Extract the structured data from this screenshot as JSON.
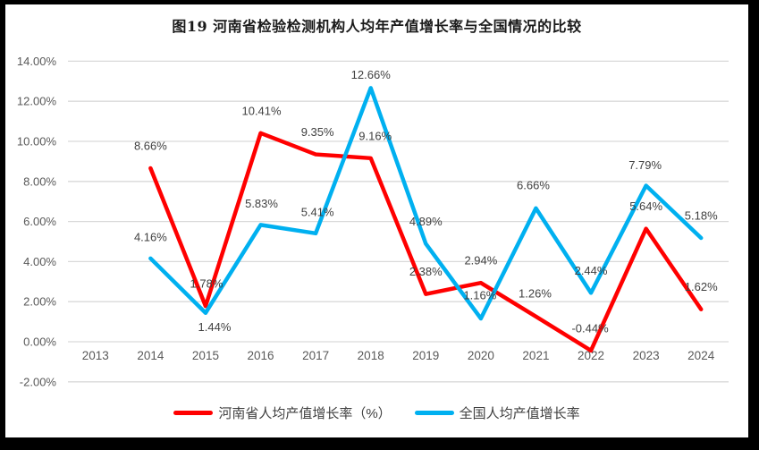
{
  "window": {
    "frame_color": "#000000",
    "canvas_background": "#FFFFFF"
  },
  "chart_data": {
    "type": "line",
    "title": "图19  河南省检验检测机构人均年产值增长率与全国情况的比较",
    "categories": [
      "2013",
      "2014",
      "2015",
      "2016",
      "2017",
      "2018",
      "2019",
      "2020",
      "2021",
      "2022",
      "2023",
      "2024"
    ],
    "series": [
      {
        "name": "河南省人均产值增长率（%）",
        "color": "#FF0000",
        "values": [
          null,
          8.66,
          1.78,
          10.41,
          9.35,
          9.16,
          2.38,
          2.94,
          1.26,
          -0.44,
          5.64,
          1.62
        ],
        "data_labels": [
          null,
          "8.66%",
          "1.78%",
          "10.41%",
          "9.35%",
          "9.16%",
          "2.38%",
          "2.94%",
          "1.26%",
          "-0.44%",
          "5.64%",
          "1.62%"
        ],
        "label_offsets": [
          null,
          [
            0,
            -25
          ],
          [
            1,
            -25
          ],
          [
            1,
            -25
          ],
          [
            2,
            -25
          ],
          [
            5,
            -25
          ],
          [
            0,
            -25
          ],
          [
            0,
            -25
          ],
          [
            -1,
            -26
          ],
          [
            -1,
            -25
          ],
          [
            0,
            -25
          ],
          [
            0,
            -25
          ]
        ]
      },
      {
        "name": "全国人均产值增长率",
        "color": "#00B0F0",
        "values": [
          null,
          4.16,
          1.44,
          5.83,
          5.41,
          12.66,
          4.89,
          1.16,
          6.66,
          2.44,
          7.79,
          5.18
        ],
        "data_labels": [
          null,
          "4.16%",
          "1.44%",
          "5.83%",
          "5.41%",
          "12.66%",
          "4.89%",
          "1.16%",
          "6.66%",
          "2.44%",
          "7.79%",
          "5.18%"
        ],
        "label_offsets": [
          null,
          [
            0,
            -24
          ],
          [
            10,
            16
          ],
          [
            1,
            -24
          ],
          [
            2,
            -24
          ],
          [
            0,
            -15
          ],
          [
            0,
            -25
          ],
          [
            -1,
            -26
          ],
          [
            -3,
            -26
          ],
          [
            0,
            -25
          ],
          [
            -1,
            -23
          ],
          [
            0,
            -25
          ]
        ]
      }
    ],
    "y_axis": {
      "min": -2,
      "max": 14,
      "step": 2,
      "tick_labels": [
        "14.00%",
        "12.00%",
        "10.00%",
        "8.00%",
        "6.00%",
        "4.00%",
        "2.00%",
        "0.00%",
        "-2.00%"
      ]
    },
    "grid": true,
    "legend_position": "bottom",
    "styles": {
      "grid_color": "#D9D9D9",
      "axis_text_color": "#595959",
      "data_label_color": "#404040",
      "line_width": 4.5
    }
  }
}
